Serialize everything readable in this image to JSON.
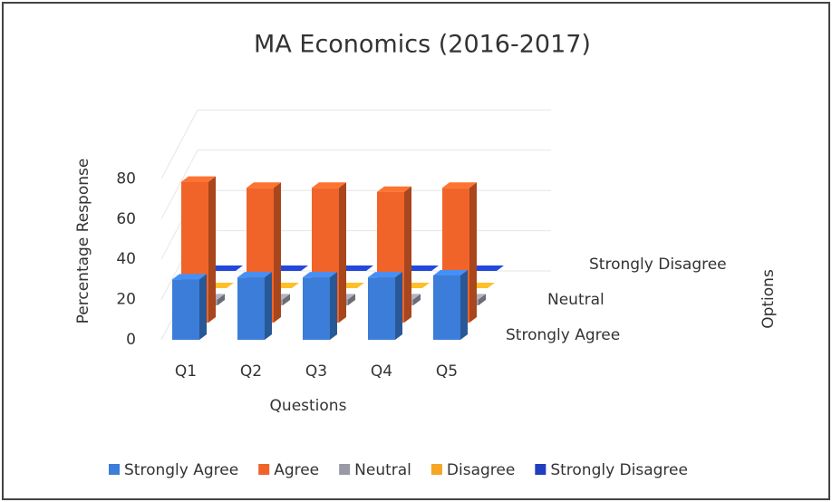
{
  "chart_data": {
    "type": "bar3d",
    "title": "MA Economics (2016-2017)",
    "y_axis_label": "Percentage Response",
    "x_axis_label": "Questions",
    "depth_axis_label": "Options",
    "categories": [
      "Q1",
      "Q2",
      "Q3",
      "Q4",
      "Q5"
    ],
    "series": [
      {
        "name": "Strongly Agree",
        "color": "#3b7dd8",
        "values": [
          30,
          31,
          31,
          31,
          32
        ]
      },
      {
        "name": "Agree",
        "color": "#f0642a",
        "values": [
          70,
          67,
          67,
          65,
          67
        ]
      },
      {
        "name": "Neutral",
        "color": "#9a9aa6",
        "values": [
          3,
          3,
          3,
          3,
          3
        ]
      },
      {
        "name": "Disagree",
        "color": "#f5a623",
        "values": [
          0,
          0,
          0,
          0,
          0
        ]
      },
      {
        "name": "Strongly Disagree",
        "color": "#1f3fbf",
        "values": [
          0,
          0,
          0,
          0,
          0
        ]
      }
    ],
    "ylim": [
      0,
      100
    ],
    "yticks": [
      0,
      20,
      40,
      60,
      80
    ],
    "grid": true,
    "legend": "bottom"
  }
}
